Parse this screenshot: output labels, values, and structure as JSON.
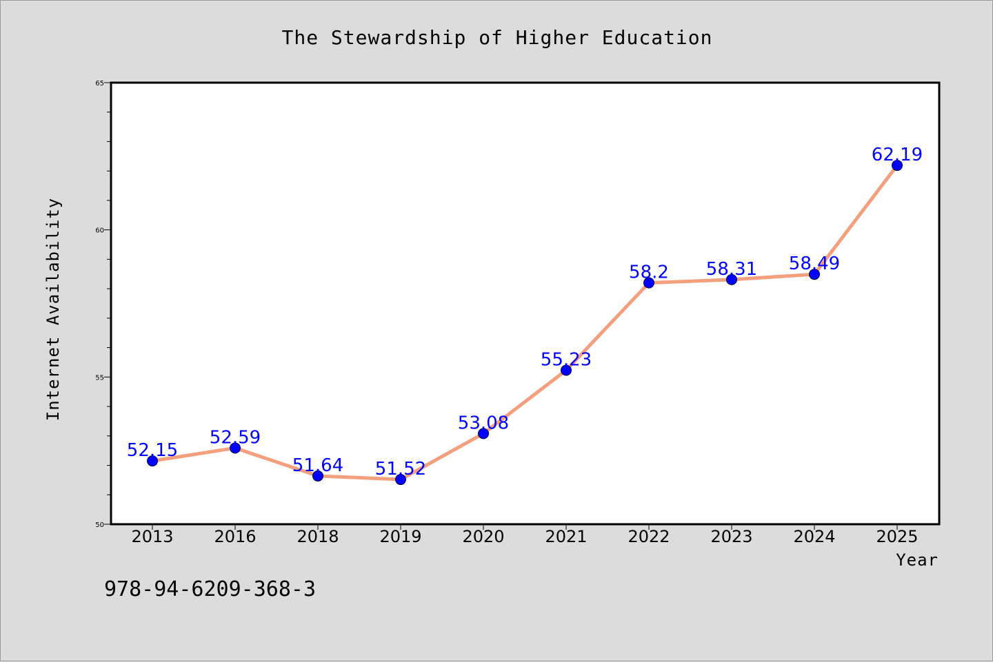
{
  "chart_data": {
    "type": "line",
    "title": "The Stewardship of Higher Education",
    "xlabel": "Year",
    "ylabel": "Internet Availability",
    "categories": [
      "2013",
      "2016",
      "2018",
      "2019",
      "2020",
      "2021",
      "2022",
      "2023",
      "2024",
      "2025"
    ],
    "series": [
      {
        "values": [
          52.15,
          52.59,
          51.64,
          51.52,
          53.08,
          55.23,
          58.2,
          58.31,
          58.49,
          62.19
        ],
        "labels": [
          "52.15",
          "52.59",
          "51.64",
          "51.52",
          "53.08",
          "55.23",
          "58.2",
          "58.31",
          "58.49",
          "62.19"
        ],
        "line_color": "#f4a07e",
        "marker_color": "#0000ff"
      }
    ],
    "ylim": [
      50,
      65
    ],
    "yticks": [
      50,
      55,
      60,
      65
    ],
    "ytick_labels": [
      "50",
      "55",
      "60",
      "65"
    ],
    "grid": false,
    "legend": "none"
  },
  "footer": {
    "isbn": "978-94-6209-368-3"
  }
}
